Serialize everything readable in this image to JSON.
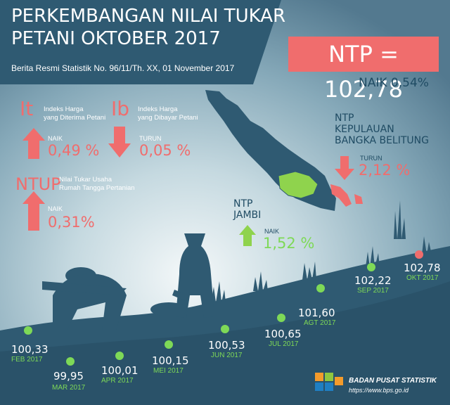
{
  "header": {
    "title_line1": "PERKEMBANGAN NILAI TUKAR",
    "title_line2": "PETANI OKTOBER 2017",
    "subtitle": "Berita Resmi Statistik No. 96/11/Th. XX, 01 November 2017"
  },
  "ntp": {
    "label": "NTP = 102,78",
    "change": "NAIK 0,54%"
  },
  "indicators": {
    "it": {
      "abbr": "It",
      "desc_line1": "Indeks Harga",
      "desc_line2": "yang Diterima Petani",
      "direction": "NAIK",
      "value": "0,49 %"
    },
    "ib": {
      "abbr": "Ib",
      "desc_line1": "Indeks Harga",
      "desc_line2": "yang Dibayar Petani",
      "direction": "TURUN",
      "value": "0,05 %"
    },
    "ntup": {
      "abbr": "NTUP",
      "desc_line1": "Nilai Tukar Usaha",
      "desc_line2": "Rumah Tangga Pertanian",
      "direction": "NAIK",
      "value": "0,31%"
    }
  },
  "regions": {
    "babel": {
      "line1": "NTP",
      "line2": "KEPULAUAN",
      "line3": "BANGKA BELITUNG",
      "direction": "TURUN",
      "value": "2,12 %"
    },
    "jambi": {
      "line1": "NTP",
      "line2": "JAMBI",
      "direction": "NAIK",
      "value": "1,52 %"
    }
  },
  "timeline": [
    {
      "value": "100,33",
      "label": "FEB 2017"
    },
    {
      "value": "99,95",
      "label": "MAR 2017"
    },
    {
      "value": "100,01",
      "label": "APR 2017"
    },
    {
      "value": "100,15",
      "label": "MEI 2017"
    },
    {
      "value": "100,53",
      "label": "JUN 2017"
    },
    {
      "value": "100,65",
      "label": "JUL 2017"
    },
    {
      "value": "101,60",
      "label": "AGT 2017"
    },
    {
      "value": "102,22",
      "label": "SEP 2017"
    },
    {
      "value": "102,78",
      "label": "OKT 2017"
    }
  ],
  "footer": {
    "org": "BADAN PUSAT STATISTIK",
    "url": "https://www.bps.go.id"
  },
  "colors": {
    "red": "#f06d6d",
    "green": "#7ed957",
    "navy": "#1f4b63",
    "sky_top": "#5a8298",
    "glow": "#e9f1f3"
  }
}
